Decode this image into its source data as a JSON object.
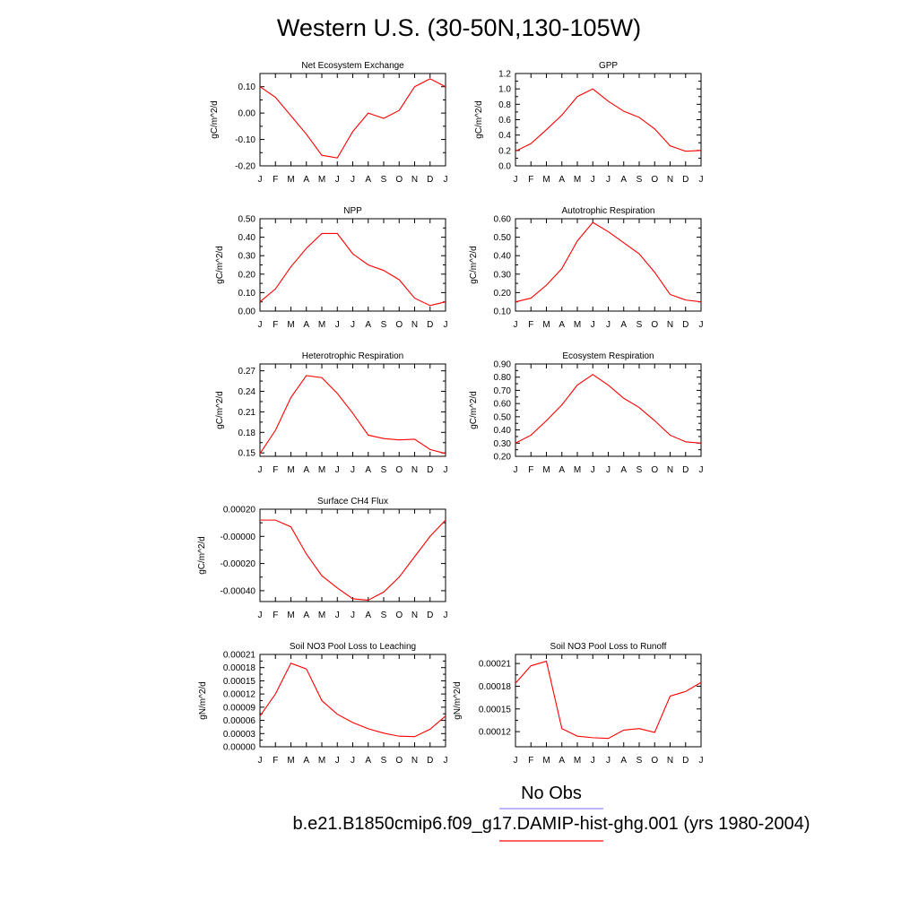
{
  "title": "Western U.S. (30-50N,130-105W)",
  "colors": {
    "model": "#ff0000",
    "obs": "#8c8cff",
    "axis": "#000000"
  },
  "legend": {
    "obs_label": "No Obs",
    "model_label": "b.e21.B1850cmip6.f09_g17.DAMIP-hist-ghg.001 (yrs 1980-2004)"
  },
  "chart_data": [
    {
      "type": "line",
      "id": "nee",
      "title": "Net Ecosystem Exchange",
      "xlabel": "",
      "ylabel": "gC/m^2/d",
      "categories": [
        "J",
        "F",
        "M",
        "A",
        "M",
        "J",
        "J",
        "A",
        "S",
        "O",
        "N",
        "D",
        "J"
      ],
      "ylim": [
        -0.2,
        0.15
      ],
      "yticks": [
        -0.2,
        -0.1,
        0.0,
        0.1
      ],
      "ytick_labels": [
        "-0.20",
        "-0.10",
        "0.00",
        "0.10"
      ],
      "series": [
        {
          "values": [
            0.1,
            0.06,
            -0.01,
            -0.08,
            -0.16,
            -0.17,
            -0.07,
            0.0,
            -0.02,
            0.01,
            0.1,
            0.13,
            0.1
          ]
        }
      ]
    },
    {
      "type": "line",
      "id": "gpp",
      "title": "GPP",
      "xlabel": "",
      "ylabel": "gC/m^2/d",
      "categories": [
        "J",
        "F",
        "M",
        "A",
        "M",
        "J",
        "J",
        "A",
        "S",
        "O",
        "N",
        "D",
        "J"
      ],
      "ylim": [
        0.0,
        1.2
      ],
      "yticks": [
        0.0,
        0.2,
        0.4,
        0.6,
        0.8,
        1.0,
        1.2
      ],
      "ytick_labels": [
        "0.0",
        "0.2",
        "0.4",
        "0.6",
        "0.8",
        "1.0",
        "1.2"
      ],
      "series": [
        {
          "values": [
            0.19,
            0.29,
            0.47,
            0.66,
            0.9,
            1.0,
            0.84,
            0.71,
            0.63,
            0.48,
            0.26,
            0.19,
            0.2
          ]
        }
      ]
    },
    {
      "type": "line",
      "id": "npp",
      "title": "NPP",
      "xlabel": "",
      "ylabel": "gC/m^2/d",
      "categories": [
        "J",
        "F",
        "M",
        "A",
        "M",
        "J",
        "J",
        "A",
        "S",
        "O",
        "N",
        "D",
        "J"
      ],
      "ylim": [
        0.0,
        0.5
      ],
      "yticks": [
        0.0,
        0.1,
        0.2,
        0.3,
        0.4,
        0.5
      ],
      "ytick_labels": [
        "0.00",
        "0.10",
        "0.20",
        "0.30",
        "0.40",
        "0.50"
      ],
      "series": [
        {
          "values": [
            0.05,
            0.12,
            0.24,
            0.34,
            0.42,
            0.42,
            0.31,
            0.25,
            0.22,
            0.17,
            0.07,
            0.03,
            0.05
          ]
        }
      ]
    },
    {
      "type": "line",
      "id": "ar",
      "title": "Autotrophic Respiration",
      "xlabel": "",
      "ylabel": "gC/m^2/d",
      "categories": [
        "J",
        "F",
        "M",
        "A",
        "M",
        "J",
        "J",
        "A",
        "S",
        "O",
        "N",
        "D",
        "J"
      ],
      "ylim": [
        0.1,
        0.6
      ],
      "yticks": [
        0.1,
        0.2,
        0.3,
        0.4,
        0.5,
        0.6
      ],
      "ytick_labels": [
        "0.10",
        "0.20",
        "0.30",
        "0.40",
        "0.50",
        "0.60"
      ],
      "series": [
        {
          "values": [
            0.15,
            0.17,
            0.24,
            0.33,
            0.48,
            0.58,
            0.53,
            0.47,
            0.41,
            0.31,
            0.19,
            0.16,
            0.15
          ]
        }
      ]
    },
    {
      "type": "line",
      "id": "hr",
      "title": "Heterotrophic Respiration",
      "xlabel": "",
      "ylabel": "gC/m^2/d",
      "categories": [
        "J",
        "F",
        "M",
        "A",
        "M",
        "J",
        "J",
        "A",
        "S",
        "O",
        "N",
        "D",
        "J"
      ],
      "ylim": [
        0.145,
        0.28
      ],
      "yticks": [
        0.15,
        0.18,
        0.21,
        0.24,
        0.27
      ],
      "ytick_labels": [
        "0.15",
        "0.18",
        "0.21",
        "0.24",
        "0.27"
      ],
      "series": [
        {
          "values": [
            0.149,
            0.183,
            0.231,
            0.263,
            0.26,
            0.237,
            0.208,
            0.176,
            0.171,
            0.169,
            0.17,
            0.155,
            0.149
          ]
        }
      ]
    },
    {
      "type": "line",
      "id": "er",
      "title": "Ecosystem Respiration",
      "xlabel": "",
      "ylabel": "gC/m^2/d",
      "categories": [
        "J",
        "F",
        "M",
        "A",
        "M",
        "J",
        "J",
        "A",
        "S",
        "O",
        "N",
        "D",
        "J"
      ],
      "ylim": [
        0.2,
        0.9
      ],
      "yticks": [
        0.2,
        0.3,
        0.4,
        0.5,
        0.6,
        0.7,
        0.8,
        0.9
      ],
      "ytick_labels": [
        "0.20",
        "0.30",
        "0.40",
        "0.50",
        "0.60",
        "0.70",
        "0.80",
        "0.90"
      ],
      "series": [
        {
          "values": [
            0.3,
            0.36,
            0.47,
            0.59,
            0.74,
            0.82,
            0.74,
            0.64,
            0.57,
            0.47,
            0.36,
            0.31,
            0.3
          ]
        }
      ]
    },
    {
      "type": "line",
      "id": "ch4",
      "title": "Surface CH4 Flux",
      "xlabel": "",
      "ylabel": "gC/m^2/d",
      "categories": [
        "J",
        "F",
        "M",
        "A",
        "M",
        "J",
        "J",
        "A",
        "S",
        "O",
        "N",
        "D",
        "J"
      ],
      "ylim": [
        -0.00048,
        0.0002
      ],
      "yticks": [
        -0.0004,
        -0.0002,
        0.0,
        0.0002
      ],
      "ytick_labels": [
        "-0.00040",
        "-0.00020",
        "-0.00000",
        "0.00020"
      ],
      "series": [
        {
          "values": [
            0.00012,
            0.00012,
            7e-05,
            -0.00013,
            -0.00029,
            -0.00038,
            -0.00046,
            -0.00047,
            -0.00041,
            -0.0003,
            -0.00015,
            0.0,
            0.00012
          ]
        }
      ]
    },
    {
      "type": "line",
      "id": "leach",
      "title": "Soil NO3 Pool Loss to Leaching",
      "xlabel": "",
      "ylabel": "gN/m^2/d",
      "categories": [
        "J",
        "F",
        "M",
        "A",
        "M",
        "J",
        "J",
        "A",
        "S",
        "O",
        "N",
        "D",
        "J"
      ],
      "ylim": [
        0.0,
        0.00021
      ],
      "yticks": [
        0.0,
        3e-05,
        6e-05,
        9e-05,
        0.00012,
        0.00015,
        0.00018,
        0.00021
      ],
      "ytick_labels": [
        "0.00000",
        "0.00003",
        "0.00006",
        "0.00009",
        "0.00012",
        "0.00015",
        "0.00018",
        "0.00021"
      ],
      "series": [
        {
          "values": [
            7e-05,
            0.00012,
            0.00019,
            0.000177,
            0.000105,
            7.4e-05,
            5.5e-05,
            4.1e-05,
            3.1e-05,
            2.4e-05,
            2.3e-05,
            4e-05,
            7e-05
          ]
        }
      ]
    },
    {
      "type": "line",
      "id": "runoff",
      "title": "Soil NO3 Pool Loss to Runoff",
      "xlabel": "",
      "ylabel": "gN/m^2/d",
      "categories": [
        "J",
        "F",
        "M",
        "A",
        "M",
        "J",
        "J",
        "A",
        "S",
        "O",
        "N",
        "D",
        "J"
      ],
      "ylim": [
        0.0001,
        0.000222
      ],
      "yticks": [
        0.00012,
        0.00015,
        0.00018,
        0.00021
      ],
      "ytick_labels": [
        "0.00012",
        "0.00015",
        "0.00018",
        "0.00021"
      ],
      "series": [
        {
          "values": [
            0.000184,
            0.000207,
            0.000213,
            0.000124,
            0.000114,
            0.000112,
            0.000111,
            0.000122,
            0.000124,
            0.000119,
            0.000167,
            0.000173,
            0.000185
          ]
        }
      ]
    }
  ]
}
